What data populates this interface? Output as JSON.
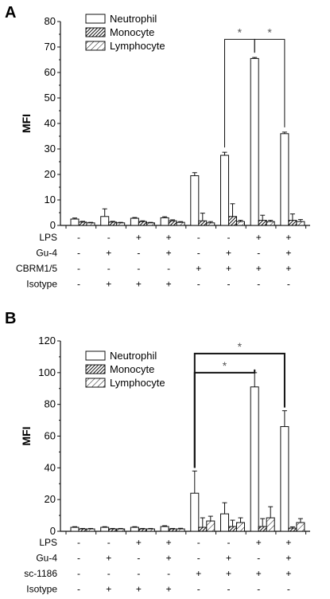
{
  "chart_data": [
    {
      "panel": "A",
      "type": "bar",
      "ylabel": "MFI",
      "ylim": [
        0,
        80
      ],
      "yticks": [
        0,
        10,
        20,
        30,
        40,
        50,
        60,
        70,
        80
      ],
      "legend_placement": "top-left",
      "series": [
        {
          "name": "Neutrophil",
          "pattern": "empty",
          "values": [
            2.5,
            3.5,
            2.8,
            3.0,
            19.5,
            27.5,
            65.5,
            36.0
          ],
          "errors": [
            0.4,
            3.0,
            0.3,
            0.4,
            1.2,
            1.2,
            0.4,
            0.6
          ]
        },
        {
          "name": "Monocyte",
          "pattern": "dense-hatch",
          "values": [
            1.3,
            1.3,
            1.5,
            1.8,
            1.8,
            3.5,
            2.0,
            2.0
          ],
          "errors": [
            0.3,
            0.3,
            0.3,
            0.4,
            3.0,
            5.0,
            2.0,
            2.5
          ]
        },
        {
          "name": "Lymphocyte",
          "pattern": "sparse-hatch",
          "values": [
            1.0,
            1.0,
            1.0,
            1.2,
            1.0,
            1.5,
            1.5,
            1.5
          ],
          "errors": [
            0.2,
            0.2,
            0.2,
            0.3,
            0.5,
            0.5,
            0.5,
            0.8
          ]
        }
      ],
      "significance": [
        {
          "from": 5,
          "to": 6,
          "label": "*"
        },
        {
          "from": 6,
          "to": 7,
          "label": "*"
        }
      ],
      "conditions": [
        {
          "label": "LPS",
          "values": [
            "-",
            "-",
            "+",
            "+",
            "-",
            "-",
            "+",
            "+"
          ]
        },
        {
          "label": "Gu-4",
          "values": [
            "-",
            "+",
            "-",
            "+",
            "-",
            "+",
            "-",
            "+"
          ]
        },
        {
          "label": "CBRM1/5",
          "values": [
            "-",
            "-",
            "-",
            "-",
            "+",
            "+",
            "+",
            "+"
          ]
        },
        {
          "label": "Isotype",
          "values": [
            "-",
            "+",
            "+",
            "+",
            "-",
            "-",
            "-",
            "-"
          ]
        }
      ]
    },
    {
      "panel": "B",
      "type": "bar",
      "ylabel": "MFI",
      "ylim": [
        0,
        120
      ],
      "yticks": [
        0,
        20,
        40,
        60,
        80,
        100,
        120
      ],
      "legend_placement": "top-left",
      "series": [
        {
          "name": "Neutrophil",
          "pattern": "empty",
          "values": [
            2.5,
            2.5,
            2.5,
            3.0,
            24.0,
            11.0,
            91.0,
            66.0
          ],
          "errors": [
            0.4,
            0.4,
            0.4,
            0.5,
            14.0,
            7.0,
            9.0,
            10.0
          ]
        },
        {
          "name": "Monocyte",
          "pattern": "dense-hatch",
          "values": [
            1.5,
            1.5,
            1.5,
            1.5,
            2.5,
            3.0,
            3.0,
            2.0
          ],
          "errors": [
            0.3,
            0.3,
            0.3,
            0.3,
            6.0,
            4.0,
            5.0,
            0.8
          ]
        },
        {
          "name": "Lymphocyte",
          "pattern": "sparse-hatch",
          "values": [
            1.5,
            1.5,
            1.5,
            1.5,
            6.5,
            5.5,
            8.5,
            5.5
          ],
          "errors": [
            0.3,
            0.3,
            0.3,
            0.4,
            3.0,
            3.0,
            7.0,
            2.5
          ]
        }
      ],
      "significance": [
        {
          "from": 4,
          "to": 6,
          "label": "*"
        },
        {
          "from": 4,
          "to": 7,
          "label": "*"
        }
      ],
      "conditions": [
        {
          "label": "LPS",
          "values": [
            "-",
            "-",
            "+",
            "+",
            "-",
            "-",
            "+",
            "+"
          ]
        },
        {
          "label": "Gu-4",
          "values": [
            "-",
            "+",
            "-",
            "+",
            "-",
            "+",
            "-",
            "+"
          ]
        },
        {
          "label": "sc-1186",
          "values": [
            "-",
            "-",
            "-",
            "-",
            "+",
            "+",
            "+",
            "+"
          ]
        },
        {
          "label": "Isotype",
          "values": [
            "-",
            "+",
            "+",
            "+",
            "-",
            "-",
            "-",
            "-"
          ]
        }
      ]
    }
  ]
}
